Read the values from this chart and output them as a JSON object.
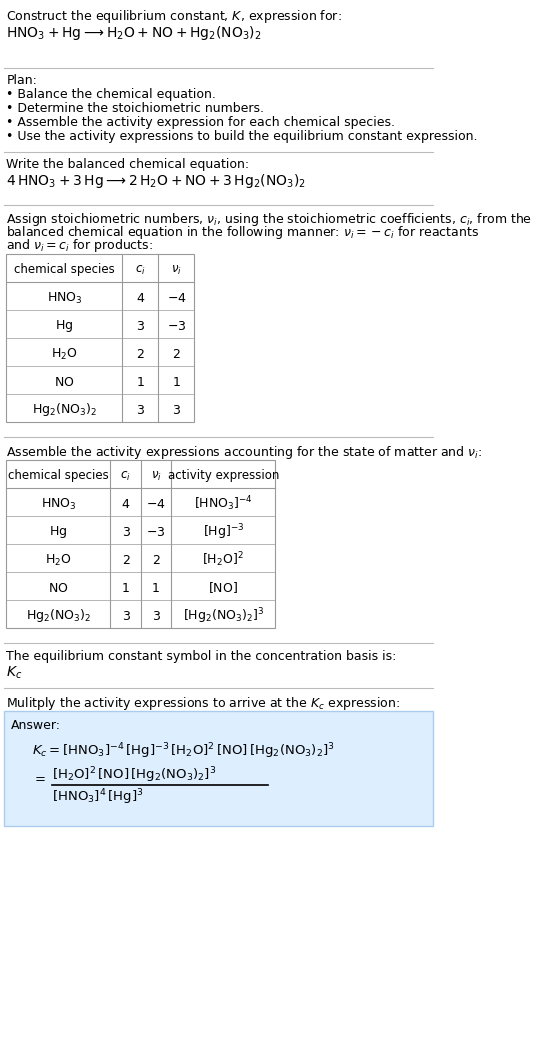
{
  "bg_color": "#ffffff",
  "title_line1": "Construct the equilibrium constant, $K$, expression for:",
  "title_line2": "$\\mathrm{HNO_3 + Hg \\longrightarrow H_2O + NO + Hg_2(NO_3)_2}$",
  "plan_header": "Plan:",
  "plan_items": [
    "• Balance the chemical equation.",
    "• Determine the stoichiometric numbers.",
    "• Assemble the activity expression for each chemical species.",
    "• Use the activity expressions to build the equilibrium constant expression."
  ],
  "balanced_header": "Write the balanced chemical equation:",
  "balanced_eq": "$\\mathrm{4\\,HNO_3 + 3\\,Hg \\longrightarrow 2\\,H_2O + NO + 3\\,Hg_2(NO_3)_2}$",
  "stoich_header": "Assign stoichiometric numbers, $\\nu_i$, using the stoichiometric coefficients, $c_i$, from the\nbalanced chemical equation in the following manner: $\\nu_i = -c_i$ for reactants\nand $\\nu_i = c_i$ for products:",
  "table1_cols": [
    "chemical species",
    "$c_i$",
    "$\\nu_i$"
  ],
  "table1_rows": [
    [
      "$\\mathrm{HNO_3}$",
      "4",
      "$-4$"
    ],
    [
      "$\\mathrm{Hg}$",
      "3",
      "$-3$"
    ],
    [
      "$\\mathrm{H_2O}$",
      "2",
      "2"
    ],
    [
      "$\\mathrm{NO}$",
      "1",
      "1"
    ],
    [
      "$\\mathrm{Hg_2(NO_3)_2}$",
      "3",
      "3"
    ]
  ],
  "assemble_header": "Assemble the activity expressions accounting for the state of matter and $\\nu_i$:",
  "table2_cols": [
    "chemical species",
    "$c_i$",
    "$\\nu_i$",
    "activity expression"
  ],
  "table2_rows": [
    [
      "$\\mathrm{HNO_3}$",
      "4",
      "$-4$",
      "$[\\mathrm{HNO_3}]^{-4}$"
    ],
    [
      "$\\mathrm{Hg}$",
      "3",
      "$-3$",
      "$[\\mathrm{Hg}]^{-3}$"
    ],
    [
      "$\\mathrm{H_2O}$",
      "2",
      "2",
      "$[\\mathrm{H_2O}]^{2}$"
    ],
    [
      "$\\mathrm{NO}$",
      "1",
      "1",
      "$[\\mathrm{NO}]$"
    ],
    [
      "$\\mathrm{Hg_2(NO_3)_2}$",
      "3",
      "3",
      "$[\\mathrm{Hg_2(NO_3)_2}]^{3}$"
    ]
  ],
  "kc_header": "The equilibrium constant symbol in the concentration basis is:",
  "kc_symbol": "$K_c$",
  "multiply_header": "Mulitply the activity expressions to arrive at the $K_c$ expression:",
  "answer_line1": "$K_c = [\\mathrm{HNO_3}]^{-4}\\,[\\mathrm{Hg}]^{-3}\\,[\\mathrm{H_2O}]^{2}\\,[\\mathrm{NO}]\\,[\\mathrm{Hg_2(NO_3)_2}]^{3}$",
  "answer_line2_num": "$[\\mathrm{H_2O}]^{2}\\,[\\mathrm{NO}]\\,[\\mathrm{Hg_2(NO_3)_2}]^{3}$",
  "answer_line2_den": "$[\\mathrm{HNO_3}]^{4}\\,[\\mathrm{Hg}]^{3}$",
  "answer_box_color": "#ddeeff",
  "answer_box_border": "#aaccee",
  "table_line_color": "#999999",
  "text_color": "#000000",
  "font_size": 9,
  "section_bg": "#ffffff"
}
